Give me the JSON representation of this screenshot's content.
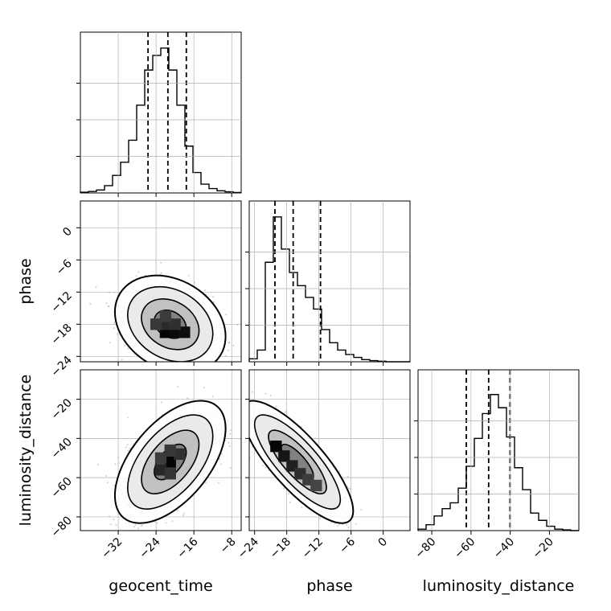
{
  "chart_data": {
    "type": "corner",
    "parameters": [
      "geocent_time",
      "phase",
      "luminosity_distance"
    ],
    "grid": true,
    "quantile_style": "dashed vertical lines on marginal histograms",
    "axes": {
      "geocent_time": {
        "range": [
          -40,
          -6
        ],
        "ticks": [
          -32,
          -24,
          -16,
          -8
        ],
        "tick_labels": [
          "−32",
          "−24",
          "−16",
          "−8"
        ]
      },
      "phase": {
        "range": [
          -25,
          5
        ],
        "ticks": [
          -24,
          -18,
          -12,
          -6,
          0
        ],
        "tick_labels": [
          "−24",
          "−18",
          "−12",
          "−6",
          "0"
        ]
      },
      "luminosity_distance": {
        "range": [
          -87,
          -5
        ],
        "ticks": [
          -80,
          -60,
          -40,
          -20
        ],
        "tick_labels": [
          "−80",
          "−60",
          "−40",
          "−20"
        ]
      }
    },
    "marginals": [
      {
        "parameter": "geocent_time",
        "bin_edges": [
          -40,
          -38.3,
          -36.6,
          -34.9,
          -33.2,
          -31.5,
          -29.8,
          -28.1,
          -26.4,
          -24.7,
          -23,
          -21.3,
          -19.6,
          -17.9,
          -16.2,
          -14.5,
          -12.8,
          -11.1,
          -9.4,
          -7.7,
          -6
        ],
        "counts": [
          0.005,
          0.01,
          0.02,
          0.05,
          0.12,
          0.21,
          0.36,
          0.6,
          0.84,
          0.94,
          0.99,
          0.84,
          0.6,
          0.32,
          0.14,
          0.06,
          0.03,
          0.015,
          0.008,
          0.003
        ],
        "quantiles": [
          -25.7,
          -21.5,
          -17.6
        ]
      },
      {
        "parameter": "phase",
        "bin_edges": [
          -25,
          -23.5,
          -22,
          -20.5,
          -19,
          -17.5,
          -16,
          -14.5,
          -13,
          -11.5,
          -10,
          -8.5,
          -7,
          -5.5,
          -4,
          -2.5,
          -1,
          0.5,
          2,
          3.5,
          5
        ],
        "counts": [
          0.02,
          0.08,
          0.68,
          0.99,
          0.77,
          0.61,
          0.52,
          0.44,
          0.36,
          0.22,
          0.13,
          0.08,
          0.05,
          0.03,
          0.015,
          0.008,
          0.004,
          0.0,
          0.0,
          0.0
        ],
        "quantiles": [
          -20.2,
          -16.8,
          -11.7
        ]
      },
      {
        "parameter": "luminosity_distance",
        "bin_edges": [
          -87,
          -82.9,
          -78.8,
          -74.7,
          -70.6,
          -66.5,
          -62.4,
          -58.3,
          -54.2,
          -50.1,
          -46,
          -41.9,
          -37.8,
          -33.7,
          -29.6,
          -25.5,
          -21.4,
          -17.3,
          -13.2,
          -9.1,
          -5
        ],
        "counts": [
          0.01,
          0.04,
          0.1,
          0.15,
          0.19,
          0.29,
          0.44,
          0.63,
          0.8,
          0.93,
          0.84,
          0.64,
          0.43,
          0.28,
          0.12,
          0.07,
          0.03,
          0.01,
          0.005,
          0.0
        ],
        "quantiles": [
          -62.4,
          -51.0,
          -40.1
        ]
      }
    ],
    "joint_panels": [
      {
        "x": "geocent_time",
        "y": "phase",
        "samples": {
          "n": 1400,
          "mean": [
            -21,
            -18
          ],
          "sd": [
            4.5,
            3.5
          ],
          "corr": -0.25
        },
        "contour_levels": [
          0.39,
          0.86,
          0.99,
          0.999
        ],
        "density_cells": [
          {
            "x": -22,
            "y": -19.5,
            "v": 1.0
          },
          {
            "x": -20,
            "y": -19.5,
            "v": 0.95
          },
          {
            "x": -18,
            "y": -19.5,
            "v": 0.9
          },
          {
            "x": -22,
            "y": -18,
            "v": 0.55
          },
          {
            "x": -20,
            "y": -18,
            "v": 0.5
          },
          {
            "x": -22,
            "y": -16.5,
            "v": 0.35
          },
          {
            "x": -24,
            "y": -18,
            "v": 0.4
          }
        ]
      },
      {
        "x": "geocent_time",
        "y": "luminosity_distance",
        "samples": {
          "n": 1500,
          "mean": [
            -21,
            -52
          ],
          "sd": [
            4.5,
            12
          ],
          "corr": 0.55
        },
        "contour_levels": [
          0.39,
          0.86,
          0.99,
          0.999
        ],
        "density_cells": [
          {
            "x": -21,
            "y": -52,
            "v": 1.0
          },
          {
            "x": -23,
            "y": -56,
            "v": 0.6
          },
          {
            "x": -19,
            "y": -48,
            "v": 0.5
          },
          {
            "x": -23,
            "y": -50,
            "v": 0.35
          },
          {
            "x": -21,
            "y": -46,
            "v": 0.4
          },
          {
            "x": -21,
            "y": -58,
            "v": 0.45
          }
        ]
      },
      {
        "x": "phase",
        "y": "luminosity_distance",
        "samples": {
          "n": 1500,
          "mean": [
            -16,
            -52
          ],
          "sd": [
            4,
            12
          ],
          "corr": -0.8
        },
        "contour_levels": [
          0.39,
          0.86,
          0.99,
          0.999
        ],
        "density_cells": [
          {
            "x": -20,
            "y": -44,
            "v": 1.0
          },
          {
            "x": -18.5,
            "y": -49,
            "v": 0.8
          },
          {
            "x": -17,
            "y": -54,
            "v": 0.7
          },
          {
            "x": -15.5,
            "y": -58,
            "v": 0.5
          },
          {
            "x": -14,
            "y": -61,
            "v": 0.35
          },
          {
            "x": -12.5,
            "y": -64,
            "v": 0.25
          }
        ]
      }
    ]
  },
  "colors": {
    "hist": "#000000",
    "sample_points": "#b0b0b0",
    "contour": "#000000",
    "grid": "#b0b0b0"
  }
}
